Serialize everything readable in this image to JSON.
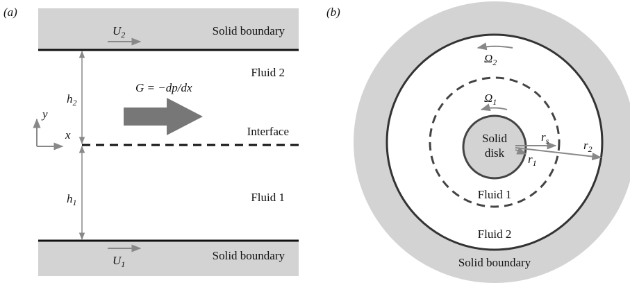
{
  "panel_a": {
    "label": "(a)",
    "top_wall": {
      "text": "Solid boundary",
      "velocity": {
        "base": "U",
        "sub": "2"
      }
    },
    "bottom_wall": {
      "text": "Solid boundary",
      "velocity": {
        "base": "U",
        "sub": "1"
      }
    },
    "upper_fluid": "Fluid 2",
    "lower_fluid": "Fluid 1",
    "upper_height": {
      "base": "h",
      "sub": "2"
    },
    "lower_height": {
      "base": "h",
      "sub": "1"
    },
    "pressure_gradient": "G = −dp/dx",
    "interface": "Interface",
    "axis_y": "y",
    "axis_x": "x"
  },
  "panel_b": {
    "label": "(b)",
    "outer_rotation": {
      "base": "Ω",
      "sub": "2"
    },
    "inner_rotation": {
      "base": "Ω",
      "sub": "1"
    },
    "disk": [
      "Solid",
      "disk"
    ],
    "disk_radius": {
      "base": "r",
      "sub": "s"
    },
    "interface_radius": {
      "base": "r",
      "sub": "1"
    },
    "outer_radius": {
      "base": "r",
      "sub": "2"
    },
    "inner_fluid": "Fluid 1",
    "outer_fluid": "Fluid 2",
    "boundary": "Solid boundary"
  }
}
